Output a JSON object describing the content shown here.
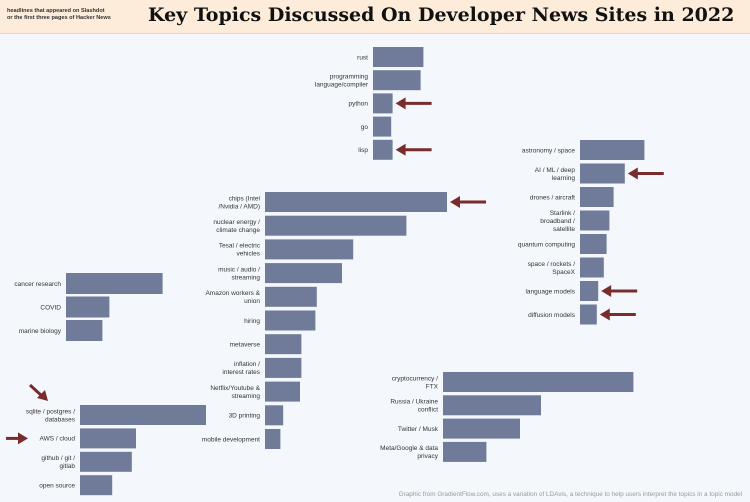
{
  "header": {
    "title": "Key Topics Discussed On Developer News Sites in 2022",
    "subtitle": "headlines that appeared on Slashdot\nor the first three pages of Hacker News"
  },
  "footer": {
    "credit": "Graphic from GradientFlow.com, uses a variation of LDAvis, a technique  to help users interpret the topics in a topic model"
  },
  "colors": {
    "bar": "#707a99",
    "arrow": "#7a2b2b",
    "header_bg": "#fcecd9",
    "page_bg": "#f4f8fc"
  },
  "chart_data": [
    {
      "type": "bar",
      "orientation": "horizontal",
      "group": "programming",
      "categories": [
        "rust",
        "programming language/compiler",
        "python",
        "go",
        "lisp"
      ],
      "values": [
        36,
        34,
        14,
        13,
        14
      ],
      "highlighted": [
        "python",
        "lisp"
      ]
    },
    {
      "type": "bar",
      "orientation": "horizontal",
      "group": "science & ai",
      "categories": [
        "astronomy / space",
        "AI / ML / deep learning",
        "drones / aircraft",
        "Starlink / broadband / satellite",
        "quantum computing",
        "space / rockets / SpaceX",
        "language models",
        "diffusion models"
      ],
      "values": [
        46,
        32,
        24,
        21,
        19,
        17,
        13,
        12
      ],
      "highlighted": [
        "AI / ML / deep learning",
        "language models",
        "diffusion models"
      ]
    },
    {
      "type": "bar",
      "orientation": "horizontal",
      "group": "tech industry",
      "categories": [
        "chips (Intel /Nvidia / AMD)",
        "nuclear energy / climate change",
        "Tesal / electric vehicles",
        "music / audio / streaming",
        "Amazon workers & union",
        "hiring",
        "metaverse",
        "inflation / interest rates",
        "Netflix/Youtube & streaming",
        "3D printing",
        "mobile development"
      ],
      "values": [
        130,
        101,
        63,
        55,
        37,
        36,
        26,
        26,
        25,
        13,
        11
      ],
      "highlighted": [
        "chips (Intel /Nvidia / AMD)"
      ]
    },
    {
      "type": "bar",
      "orientation": "horizontal",
      "group": "health",
      "categories": [
        "cancer research",
        "COVID",
        "marine biology"
      ],
      "values": [
        69,
        31,
        26
      ],
      "highlighted": []
    },
    {
      "type": "bar",
      "orientation": "horizontal",
      "group": "infrastructure",
      "categories": [
        "sqlite / postgres / databases",
        "AWS / cloud",
        "github / git / gitlab",
        "open source"
      ],
      "values": [
        90,
        40,
        37,
        23
      ],
      "highlighted": [
        "sqlite / postgres / databases",
        "AWS / cloud"
      ]
    },
    {
      "type": "bar",
      "orientation": "horizontal",
      "group": "society",
      "categories": [
        "cryptocurrency / FTX",
        "Russia / Ukraine conflict",
        "Twitter / Musk",
        "Meta/Google & data privacy"
      ],
      "values": [
        136,
        70,
        55,
        31
      ],
      "highlighted": []
    }
  ]
}
